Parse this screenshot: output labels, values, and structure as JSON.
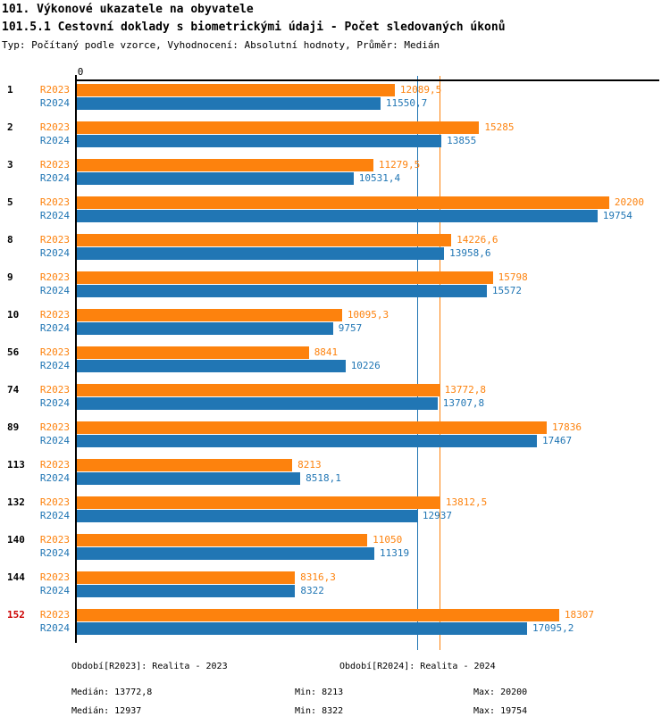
{
  "header": {
    "title": "101. Výkonové ukazatele na obyvatele",
    "subtitle": "101.5.1 Cestovní doklady s biometrickými údaji - Počet sledovaných úkonů",
    "meta": "Typ: Počítaný podle vzorce, Vyhodnocení: Absolutní hodnoty, Průměr: Medián"
  },
  "axis": {
    "zero_label": "0"
  },
  "colors": {
    "r2023": "#fd820d",
    "r2024": "#2176b4",
    "highlight_category": "#cc0000",
    "axis": "#000000"
  },
  "chart_data": {
    "type": "bar",
    "orientation": "horizontal",
    "title": "101.5.1 Cestovní doklady s biometrickými údaji - Počet sledovaných úkonů",
    "xlabel": "",
    "ylabel": "",
    "xlim": [
      0,
      22000
    ],
    "grid": false,
    "categories": [
      "1",
      "2",
      "3",
      "5",
      "8",
      "9",
      "10",
      "56",
      "74",
      "89",
      "113",
      "132",
      "140",
      "144",
      "152"
    ],
    "highlight_category": "152",
    "series": [
      {
        "name": "R2023",
        "color": "#fd820d",
        "values": [
          12089.5,
          15285,
          11279.5,
          20200,
          14226.6,
          15798,
          10095.3,
          8841,
          13772.8,
          17836,
          8213,
          13812.5,
          11050,
          8316.3,
          18307
        ],
        "value_labels": [
          "12089,5",
          "15285",
          "11279,5",
          "20200",
          "14226,6",
          "15798",
          "10095,3",
          "8841",
          "13772,8",
          "17836",
          "8213",
          "13812,5",
          "11050",
          "8316,3",
          "18307"
        ]
      },
      {
        "name": "R2024",
        "color": "#2176b4",
        "values": [
          11550.7,
          13855,
          10531.4,
          19754,
          13958.6,
          15572,
          9757,
          10226,
          13707.8,
          17467,
          8518.1,
          12937,
          11319,
          8322,
          17095.2
        ],
        "value_labels": [
          "11550,7",
          "13855",
          "10531,4",
          "19754",
          "13958,6",
          "15572",
          "9757",
          "10226",
          "13707,8",
          "17467",
          "8518,1",
          "12937",
          "11319",
          "8322",
          "17095,2"
        ]
      }
    ],
    "reference_lines": [
      {
        "name": "median-line-r2024",
        "value": 12937,
        "color": "#2176b4"
      },
      {
        "name": "median-line-r2023",
        "value": 13772.8,
        "color": "#fd820d"
      }
    ]
  },
  "footer": {
    "legend_r2023": "Období[R2023]: Realita - 2023",
    "legend_r2024": "Období[R2024]: Realita - 2024",
    "stats_r2023": {
      "median": "Medián: 13772,8",
      "min": "Min: 8213",
      "max": "Max: 20200"
    },
    "stats_r2024": {
      "median": "Medián: 12937",
      "min": "Min: 8322",
      "max": "Max: 19754"
    }
  }
}
